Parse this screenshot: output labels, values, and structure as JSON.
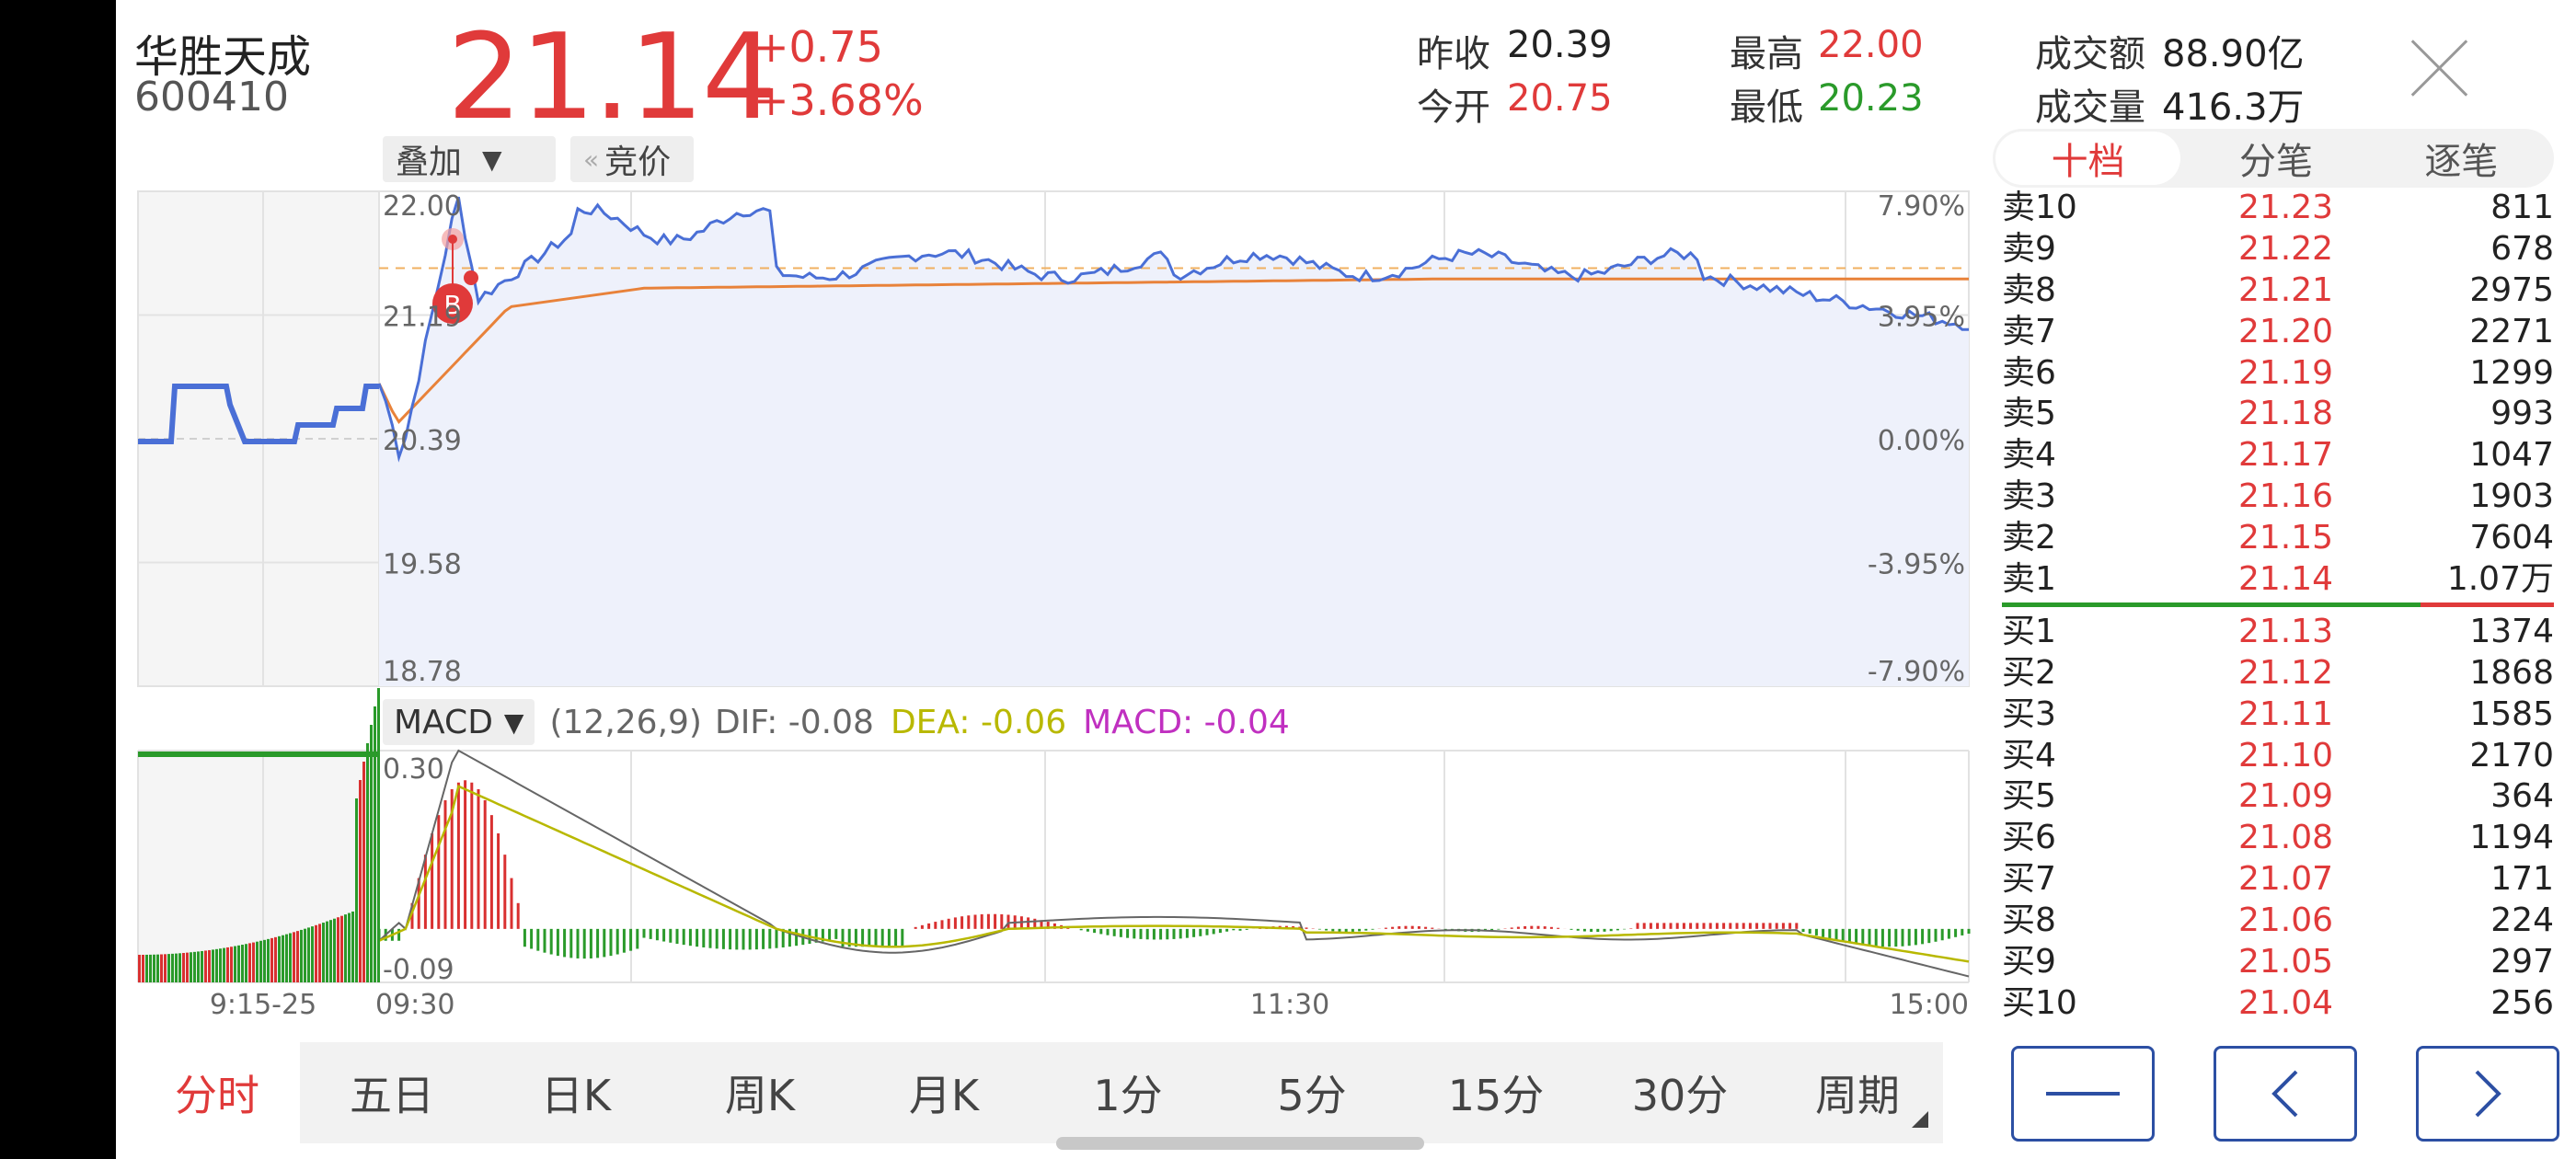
{
  "stock": {
    "name": "华胜天成",
    "code": "600410",
    "price": "21.14",
    "change": "+0.75",
    "change_pct": "+3.68%"
  },
  "quote": {
    "prev_close_label": "昨收",
    "prev_close": "20.39",
    "open_label": "今开",
    "open": "20.75",
    "high_label": "最高",
    "high": "22.00",
    "low_label": "最低",
    "low": "20.23",
    "amount_label": "成交额",
    "amount": "88.90亿",
    "volume_label": "成交量",
    "volume": "416.3万"
  },
  "overlay": {
    "overlay_label": "叠加",
    "auction_label": "竞价",
    "arrow": "▼",
    "left_arrows": "«"
  },
  "right_tabs": [
    {
      "label": "十档",
      "active": true
    },
    {
      "label": "分笔"
    },
    {
      "label": "逐笔"
    }
  ],
  "order_book": {
    "asks": [
      {
        "label": "卖10",
        "price": "21.23",
        "vol": "811"
      },
      {
        "label": "卖9",
        "price": "21.22",
        "vol": "678"
      },
      {
        "label": "卖8",
        "price": "21.21",
        "vol": "2975"
      },
      {
        "label": "卖7",
        "price": "21.20",
        "vol": "2271"
      },
      {
        "label": "卖6",
        "price": "21.19",
        "vol": "1299"
      },
      {
        "label": "卖5",
        "price": "21.18",
        "vol": "993"
      },
      {
        "label": "卖4",
        "price": "21.17",
        "vol": "1047"
      },
      {
        "label": "卖3",
        "price": "21.16",
        "vol": "1903"
      },
      {
        "label": "卖2",
        "price": "21.15",
        "vol": "7604"
      },
      {
        "label": "卖1",
        "price": "21.14",
        "vol": "1.07万"
      }
    ],
    "bids": [
      {
        "label": "买1",
        "price": "21.13",
        "vol": "1374"
      },
      {
        "label": "买2",
        "price": "21.12",
        "vol": "1868"
      },
      {
        "label": "买3",
        "price": "21.11",
        "vol": "1585"
      },
      {
        "label": "买4",
        "price": "21.10",
        "vol": "2170"
      },
      {
        "label": "买5",
        "price": "21.09",
        "vol": "364"
      },
      {
        "label": "买6",
        "price": "21.08",
        "vol": "1194"
      },
      {
        "label": "买7",
        "price": "21.07",
        "vol": "171"
      },
      {
        "label": "买8",
        "price": "21.06",
        "vol": "224"
      },
      {
        "label": "买9",
        "price": "21.05",
        "vol": "297"
      },
      {
        "label": "买10",
        "price": "21.04",
        "vol": "256"
      }
    ]
  },
  "chart": {
    "price_ticks": [
      "22.00",
      "21.19",
      "20.39",
      "19.58",
      "18.78"
    ],
    "pct_ticks": [
      "7.90%",
      "3.95%",
      "0.00%",
      "-3.95%",
      "-7.90%"
    ],
    "marker_label": "B",
    "macd_ticks": [
      "0.30",
      "-0.09"
    ],
    "time_labels": [
      "9:15-25",
      "09:30",
      "11:30",
      "15:00"
    ],
    "colors": {
      "price_line": "#4a6fd6",
      "avg_line": "#e8823a",
      "up": "#d93030",
      "down": "#2a9a2a",
      "dea": "#b8b800",
      "macd": "#c030c0"
    }
  },
  "macd": {
    "selector": "MACD",
    "arrow": "▼",
    "params": "(12,26,9)",
    "dif": "DIF: -0.08",
    "dea": "DEA: -0.06",
    "macd": "MACD: -0.04"
  },
  "periods": [
    "分时",
    "五日",
    "日K",
    "周K",
    "月K",
    "1分",
    "5分",
    "15分",
    "30分",
    "周期"
  ],
  "nav": {
    "minus": "minus-icon",
    "prev": "chevron-left-icon",
    "next": "chevron-right-icon"
  }
}
